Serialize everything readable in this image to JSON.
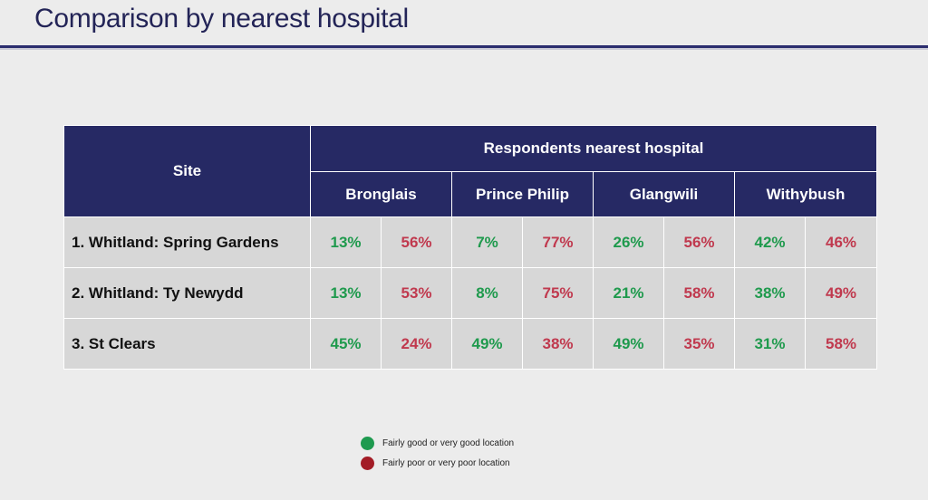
{
  "title": "Comparison by nearest hospital",
  "table": {
    "site_header": "Site",
    "group_header": "Respondents nearest hospital",
    "hospitals": [
      "Bronglais",
      "Prince Philip",
      "Glangwili",
      "Withybush"
    ],
    "rows": [
      {
        "site": "1. Whitland: Spring Gardens",
        "values": [
          {
            "good": "13%",
            "poor": "56%"
          },
          {
            "good": "7%",
            "poor": "77%"
          },
          {
            "good": "26%",
            "poor": "56%"
          },
          {
            "good": "42%",
            "poor": "46%"
          }
        ]
      },
      {
        "site": "2. Whitland: Ty Newydd",
        "values": [
          {
            "good": "13%",
            "poor": "53%"
          },
          {
            "good": "8%",
            "poor": "75%"
          },
          {
            "good": "21%",
            "poor": "58%"
          },
          {
            "good": "38%",
            "poor": "49%"
          }
        ]
      },
      {
        "site": "3. St Clears",
        "values": [
          {
            "good": "45%",
            "poor": "24%"
          },
          {
            "good": "49%",
            "poor": "38%"
          },
          {
            "good": "49%",
            "poor": "35%"
          },
          {
            "good": "31%",
            "poor": "58%"
          }
        ]
      }
    ]
  },
  "legend": {
    "good_label": "Fairly good or very good location",
    "poor_label": "Fairly poor or very poor location"
  },
  "colors": {
    "header_bg": "#262964",
    "good": "#1f9a4d",
    "poor": "#c0394e"
  }
}
